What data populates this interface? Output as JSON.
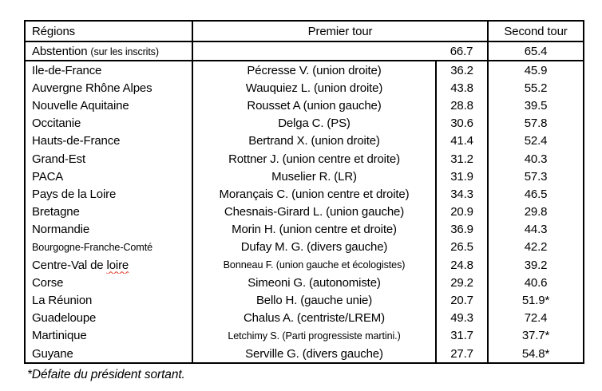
{
  "colors": {
    "background": "#ffffff",
    "text": "#000000",
    "table_border": "#000000",
    "spellcheck_squiggle": "#e0341f"
  },
  "table": {
    "headers": {
      "regions": "Régions",
      "premier_tour": "Premier tour",
      "second_tour": "Second tour"
    },
    "abstention": {
      "label": "Abstention ",
      "note": "(sur les inscrits)",
      "premier": "66.7",
      "second": "65.4"
    },
    "rows": [
      {
        "region": "Ile-de-France",
        "candidate": "Pécresse V. (union droite)",
        "premier": "36.2",
        "second": "45.9"
      },
      {
        "region": "Auvergne Rhône Alpes",
        "candidate": "Wauquiez L. (union droite)",
        "premier": "43.8",
        "second": "55.2"
      },
      {
        "region": "Nouvelle Aquitaine",
        "candidate": "Rousset A (union gauche)",
        "premier": "28.8",
        "second": "39.5"
      },
      {
        "region": "Occitanie",
        "candidate": "Delga C. (PS)",
        "premier": "30.6",
        "second": "57.8"
      },
      {
        "region": "Hauts-de-France",
        "candidate": "Bertrand X. (union droite)",
        "premier": "41.4",
        "second": "52.4"
      },
      {
        "region": "Grand-Est",
        "candidate": "Rottner J. (union centre et droite)",
        "premier": "31.2",
        "second": "40.3"
      },
      {
        "region": "PACA",
        "candidate": "Muselier R. (LR)",
        "premier": "31.9",
        "second": "57.3"
      },
      {
        "region": "Pays de la Loire",
        "candidate": "Morançais C. (union centre et droite)",
        "premier": "34.3",
        "second": "46.5"
      },
      {
        "region": "Bretagne",
        "candidate": "Chesnais-Girard L. (union gauche)",
        "premier": "20.9",
        "second": "29.8"
      },
      {
        "region": "Normandie",
        "candidate": "Morin H. (union centre et droite)",
        "premier": "36.9",
        "second": "44.3"
      },
      {
        "region": "Bourgogne-Franche-Comté",
        "region_small": true,
        "candidate": "Dufay M. G. (divers gauche)",
        "premier": "26.5",
        "second": "42.2"
      },
      {
        "region": "Centre-Val de ",
        "region_wavy": "loire",
        "candidate": "Bonneau F. (union gauche et écologistes)",
        "candidate_small": true,
        "premier": "24.8",
        "second": "39.2"
      },
      {
        "region": "Corse",
        "candidate": "Simeoni G. (autonomiste)",
        "premier": "29.2",
        "second": "40.6"
      },
      {
        "region": "La Réunion",
        "candidate": "Bello H. (gauche unie)",
        "premier": "20.7",
        "second": "51.9*"
      },
      {
        "region": "Guadeloupe",
        "candidate": "Chalus A. (centriste/LREM)",
        "premier": "49.3",
        "second": "72.4"
      },
      {
        "region": "Martinique",
        "candidate": "Letchimy S. (Parti progressiste martini.)",
        "candidate_small": true,
        "premier": "31.7",
        "second": "37.7*"
      },
      {
        "region": "Guyane",
        "candidate": "Serville G. (divers gauche)",
        "premier": "27.7",
        "second": "54.8*"
      }
    ],
    "footnote": "*Défaite du président sortant."
  }
}
